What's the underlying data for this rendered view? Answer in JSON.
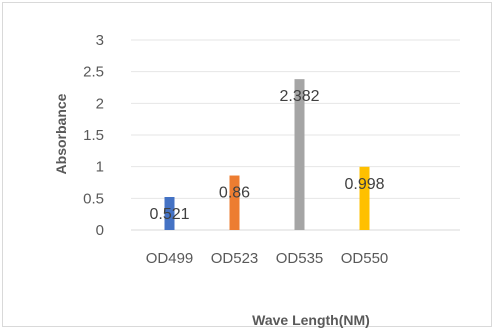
{
  "chart_data": {
    "type": "bar",
    "categories": [
      "OD499",
      "OD523",
      "OD535",
      "OD550"
    ],
    "values": [
      0.521,
      0.86,
      2.382,
      0.998
    ],
    "data_labels": [
      "0.521",
      "0.86",
      "2.382",
      "0.998"
    ],
    "colors": [
      "#4472c4",
      "#ed7d31",
      "#a5a5a5",
      "#ffc000"
    ],
    "xlabel": "Wave Length(NM)",
    "ylabel": "Absorbance",
    "ylim": [
      0,
      3
    ],
    "yticks": [
      "0",
      "0.5",
      "1",
      "1.5",
      "2",
      "2.5",
      "3"
    ],
    "grid": true,
    "legend": "none"
  }
}
